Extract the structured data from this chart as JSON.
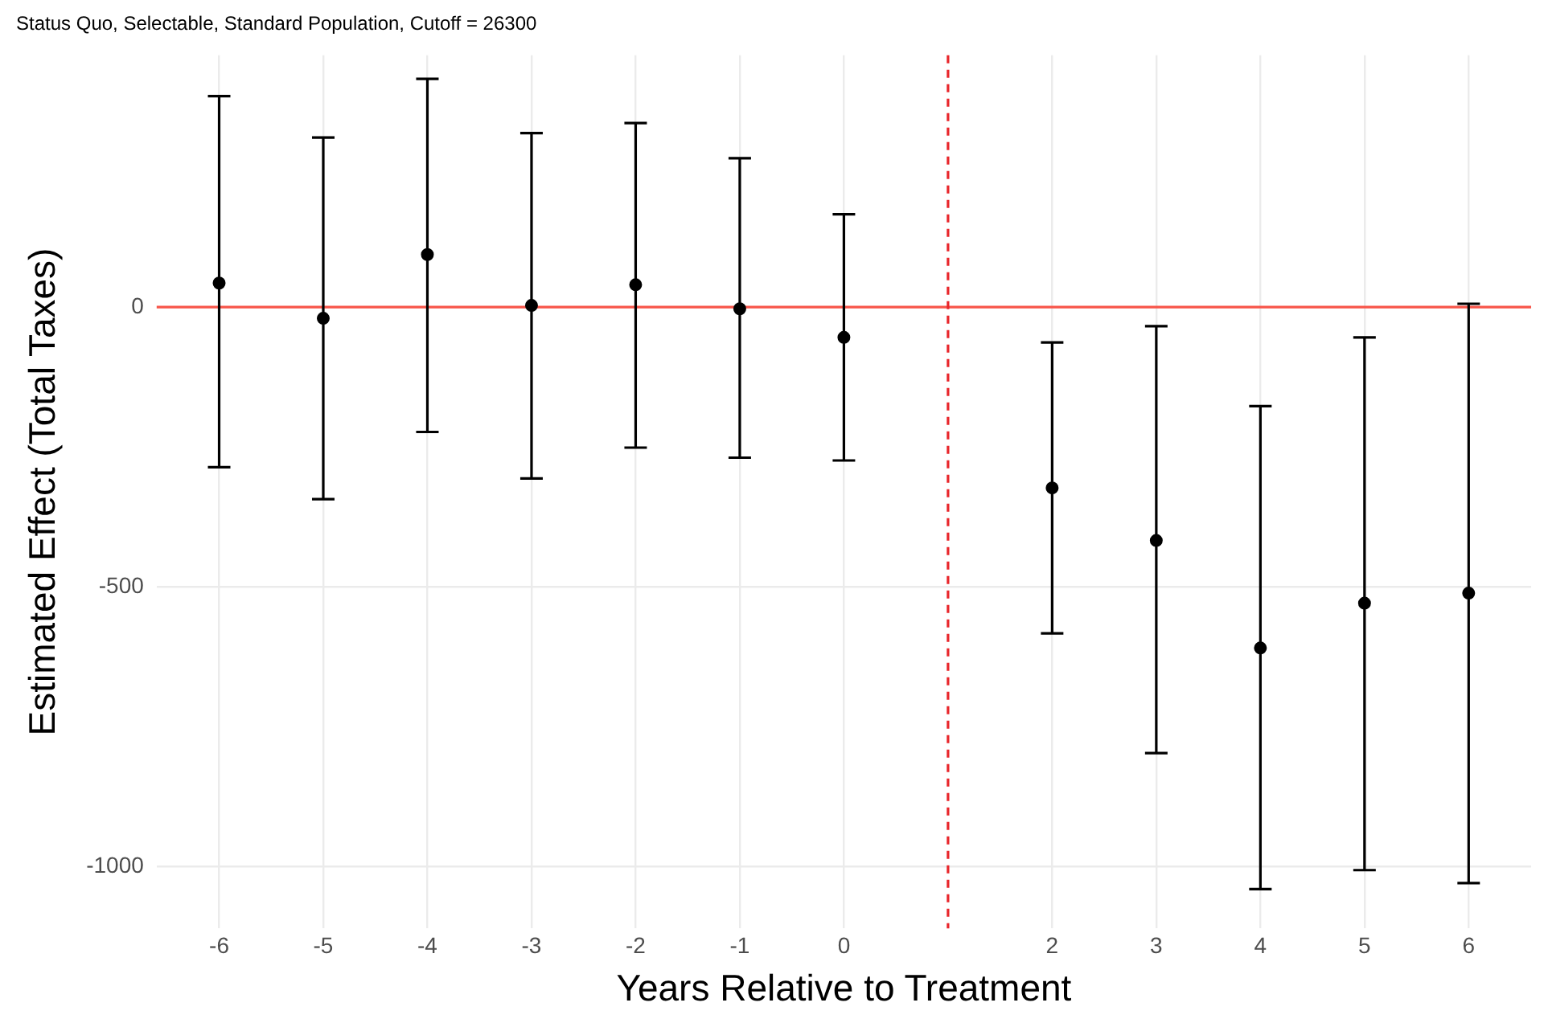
{
  "chart_data": {
    "type": "scatter",
    "title": "Status Quo, Selectable, Standard Population, Cutoff = 26300",
    "xlabel": "Years Relative to Treatment",
    "ylabel": "Estimated Effect (Total Taxes)",
    "x": [
      -6,
      -5,
      -4,
      -3,
      -2,
      -1,
      0,
      2,
      3,
      4,
      5,
      6
    ],
    "series": [
      {
        "color": "#000000",
        "values": [
          43,
          -20,
          94,
          3,
          40,
          -3,
          -54,
          -323,
          -417,
          -609,
          -529,
          -511
        ],
        "errors": [
          [
            -286,
            377
          ],
          [
            -343,
            303
          ],
          [
            -223,
            408
          ],
          [
            -306,
            311
          ],
          [
            -251,
            329
          ],
          [
            -269,
            266
          ],
          [
            -274,
            166
          ],
          [
            -583,
            -63
          ],
          [
            -797,
            -34
          ],
          [
            -1040,
            -177
          ],
          [
            -1006,
            -54
          ],
          [
            -1029,
            6
          ]
        ]
      }
    ],
    "xlim": [
      -6.6,
      6.6
    ],
    "xticks": [
      -6,
      -5,
      -4,
      -3,
      -2,
      -1,
      0,
      2,
      3,
      4,
      5,
      6
    ],
    "ylim": [
      -1110,
      450
    ],
    "yticks": [
      -1000,
      -500,
      0
    ],
    "ref_lines": [
      {
        "axis": "y",
        "value": 0,
        "color": "#f8554a",
        "line_style": "solid"
      },
      {
        "axis": "x",
        "value": 1,
        "color": "#e8262b",
        "line_style": "dashed"
      }
    ],
    "grid": true,
    "legend": false,
    "marker": "circle"
  }
}
